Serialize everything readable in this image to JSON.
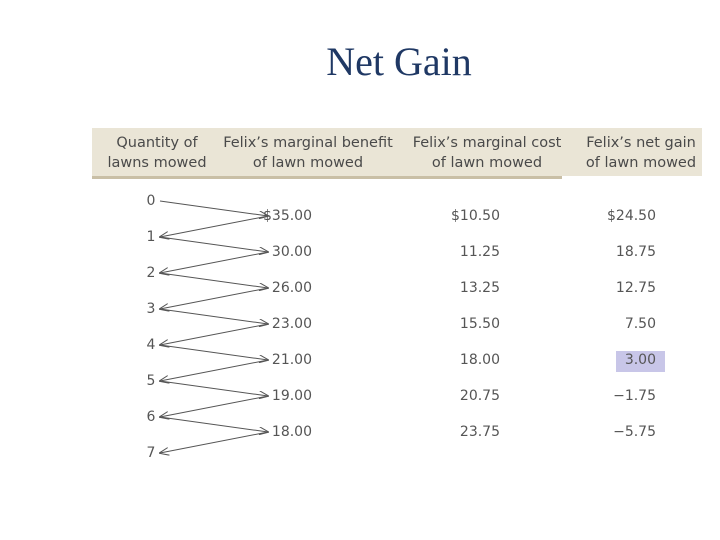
{
  "slide": {
    "title": "Net Gain"
  },
  "table": {
    "headers": [
      {
        "line1": "Quantity of",
        "line2": "lawns mowed"
      },
      {
        "line1": "Felix’s marginal benefit",
        "line2": "of lawn mowed"
      },
      {
        "line1": "Felix’s marginal cost",
        "line2": "of lawn mowed"
      },
      {
        "line1": "Felix’s net gain",
        "line2": "of lawn mowed"
      }
    ],
    "quantities": [
      "0",
      "1",
      "2",
      "3",
      "4",
      "5",
      "6",
      "7"
    ],
    "rows": [
      {
        "benefit": "$35.00",
        "cost": "$10.50",
        "net": "$24.50"
      },
      {
        "benefit": "30.00",
        "cost": "11.25",
        "net": "18.75"
      },
      {
        "benefit": "26.00",
        "cost": "13.25",
        "net": "12.75"
      },
      {
        "benefit": "23.00",
        "cost": "15.50",
        "net": "7.50"
      },
      {
        "benefit": "21.00",
        "cost": "18.00",
        "net": "3.00"
      },
      {
        "benefit": "19.00",
        "cost": "20.75",
        "net": "−1.75"
      },
      {
        "benefit": "18.00",
        "cost": "23.75",
        "net": "−5.75"
      }
    ],
    "highlighted_row": 4,
    "highlight_color": "#c8c6e8",
    "title_color": "#1f3864",
    "header_color": "#eae5d6"
  }
}
